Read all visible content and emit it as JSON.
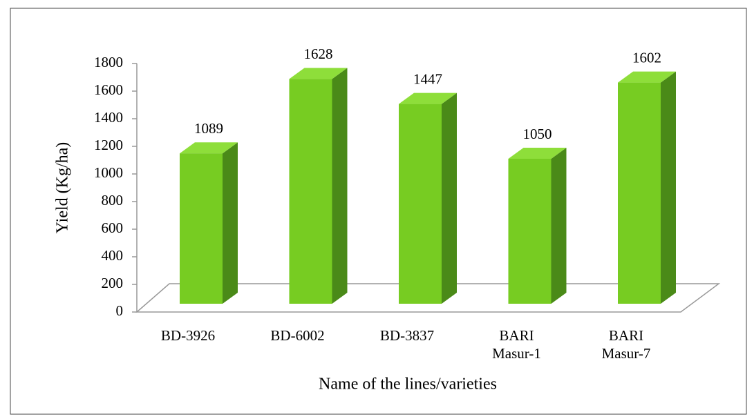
{
  "chart_data": {
    "type": "bar3d",
    "categories": [
      "BD-3926",
      "BD-6002",
      "BD-3837",
      "BARI Masur-1",
      "BARI Masur-7"
    ],
    "values": [
      1089,
      1628,
      1447,
      1050,
      1602
    ],
    "color": "#77cc22",
    "xlabel": "Name of the lines/varieties",
    "ylabel": "Yield (Kg/ha)",
    "ylim": [
      0,
      1800
    ],
    "yticks": [
      0,
      200,
      400,
      600,
      800,
      1000,
      1200,
      1400,
      1600,
      1800
    ]
  }
}
